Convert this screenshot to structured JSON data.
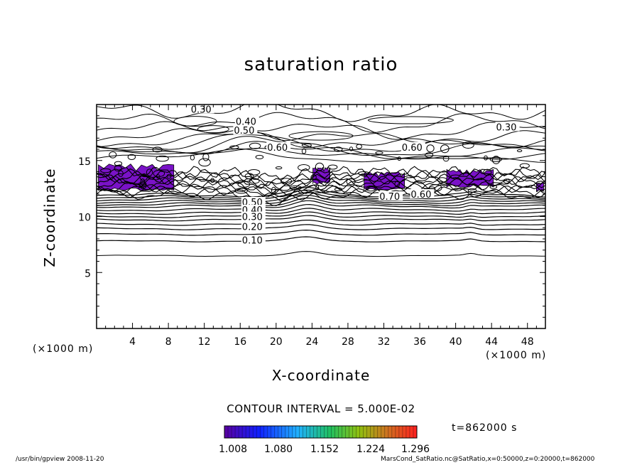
{
  "chart_data": {
    "type": "contour",
    "title": "saturation ratio",
    "xlabel": "X-coordinate",
    "ylabel": "Z-coordinate",
    "x_unit": "(×1000 m)",
    "y_unit": "(×1000 m)",
    "xlim": [
      0,
      50
    ],
    "ylim": [
      0,
      20
    ],
    "x_ticks": [
      4,
      8,
      12,
      16,
      20,
      24,
      28,
      32,
      36,
      40,
      44,
      48
    ],
    "y_ticks": [
      5,
      10,
      15
    ],
    "contour_interval_label": "CONTOUR INTERVAL = 5.000E-02",
    "contour_labels": [
      {
        "text": "0.30",
        "x": 10.5,
        "z": 19.6
      },
      {
        "text": "0.40",
        "x": 15.5,
        "z": 18.5
      },
      {
        "text": "0.50",
        "x": 15.3,
        "z": 17.7
      },
      {
        "text": "0.30",
        "x": 44.5,
        "z": 18.0
      },
      {
        "text": "0.60",
        "x": 19.0,
        "z": 16.2
      },
      {
        "text": "0.60",
        "x": 34.0,
        "z": 16.2
      },
      {
        "text": "0.70",
        "x": 31.5,
        "z": 11.8
      },
      {
        "text": "0.60",
        "x": 35.0,
        "z": 12.0
      },
      {
        "text": "0.50",
        "x": 16.2,
        "z": 11.3
      },
      {
        "text": "0.40",
        "x": 16.2,
        "z": 10.6
      },
      {
        "text": "0.30",
        "x": 16.2,
        "z": 10.0
      },
      {
        "text": "0.20",
        "x": 16.2,
        "z": 9.1
      },
      {
        "text": "0.10",
        "x": 16.2,
        "z": 7.9
      }
    ],
    "supersaturated_regions": [
      {
        "x": [
          0.2,
          8.6
        ],
        "z": [
          12.3,
          14.7
        ]
      },
      {
        "x": [
          24.1,
          26.0
        ],
        "z": [
          12.9,
          14.4
        ]
      },
      {
        "x": [
          29.8,
          34.3
        ],
        "z": [
          12.3,
          14.0
        ]
      },
      {
        "x": [
          39.0,
          44.2
        ],
        "z": [
          12.6,
          14.2
        ]
      },
      {
        "x": [
          49.0,
          49.8
        ],
        "z": [
          12.2,
          13.0
        ]
      }
    ],
    "colorbar": {
      "min": 1.008,
      "max": 1.296,
      "ticks": [
        "1.008",
        "1.080",
        "1.152",
        "1.224",
        "1.296"
      ],
      "colors": [
        "#6600aa",
        "#0000ff",
        "#00aaff",
        "#00cc66",
        "#66cc00",
        "#cc6600",
        "#ff0000"
      ]
    },
    "time_label": "t=862000 s"
  },
  "footer": {
    "left": "/usr/bin/gpview   2008-11-20",
    "right": "MarsCond_SatRatio.nc@SatRatio,x=0:50000,z=0:20000,t=862000"
  },
  "colors": {
    "fill": "#7a12c8",
    "line": "#000000"
  }
}
